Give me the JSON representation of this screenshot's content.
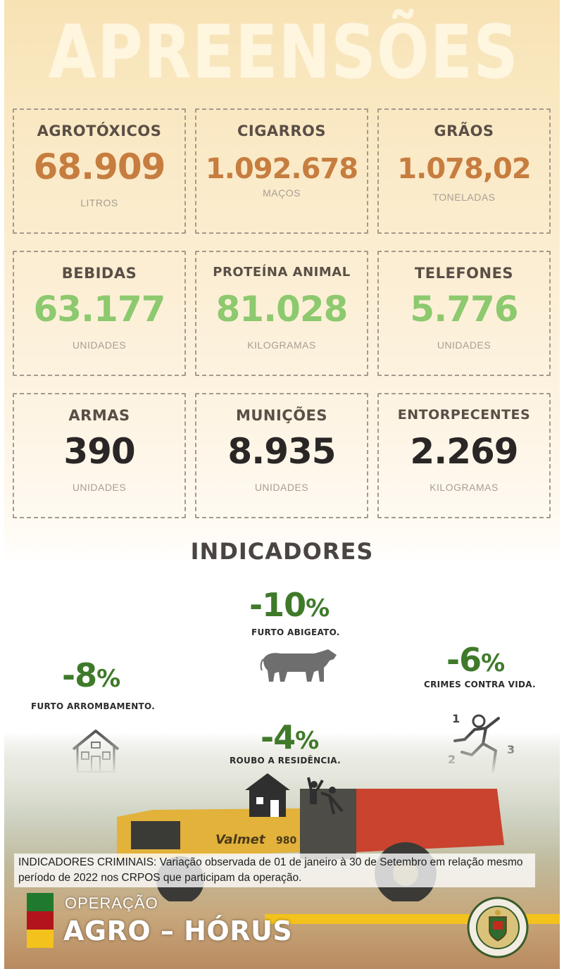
{
  "header": {
    "title": "APREENSÕES"
  },
  "stats": [
    {
      "label": "AGROTÓXICOS",
      "value": "68.909",
      "unit": "LITROS"
    },
    {
      "label": "CIGARROS",
      "value": "1.092.678",
      "unit": "MAÇOS"
    },
    {
      "label": "GRÃOS",
      "value": "1.078,02",
      "unit": "TONELADAS"
    },
    {
      "label": "BEBIDAS",
      "value": "63.177",
      "unit": "UNIDADES"
    },
    {
      "label": "PROTEÍNA ANIMAL",
      "value": "81.028",
      "unit": "KILOGRAMAS"
    },
    {
      "label": "TELEFONES",
      "value": "5.776",
      "unit": "UNIDADES"
    },
    {
      "label": "ARMAS",
      "value": "390",
      "unit": "UNIDADES"
    },
    {
      "label": "MUNIÇÕES",
      "value": "8.935",
      "unit": "UNIDADES"
    },
    {
      "label": "ENTORPECENTES",
      "value": "2.269",
      "unit": "KILOGRAMAS"
    }
  ],
  "colors": {
    "orange": "#c67d3f",
    "green": "#8dc96e",
    "dark": "#2b2626",
    "indicator_green": "#3f7a2a"
  },
  "indicators": {
    "title": "INDICADORES",
    "items": [
      {
        "value": "-10",
        "symbol": "%",
        "label": "FURTO ABIGEATO.",
        "icon": "cow-icon"
      },
      {
        "value": "-8",
        "symbol": "%",
        "label": "FURTO ARROMBAMENTO.",
        "icon": "house-icon"
      },
      {
        "value": "-6",
        "symbol": "%",
        "label": "CRIMES CONTRA VIDA.",
        "icon": "crime-scene-icon"
      },
      {
        "value": "-4",
        "symbol": "%",
        "label": "ROUBO A RESIDÊNCIA.",
        "icon": "house-robbery-icon"
      }
    ]
  },
  "note": "INDICADORES CRIMINAIS: Variação observada de 01 de janeiro à 30 de Setembro em relação mesmo período de 2022 nos CRPOS que participam da operação.",
  "photo": {
    "tractor_brand": "Valmet",
    "tractor_model": "980"
  },
  "footer": {
    "operation_label": "OPERAÇÃO",
    "operation_name": "AGRO – HÓRUS",
    "flag_colors": [
      "#1f7a2e",
      "#b3141c",
      "#f3c21c"
    ],
    "seal_icon": "brigada-militar-seal-icon"
  }
}
